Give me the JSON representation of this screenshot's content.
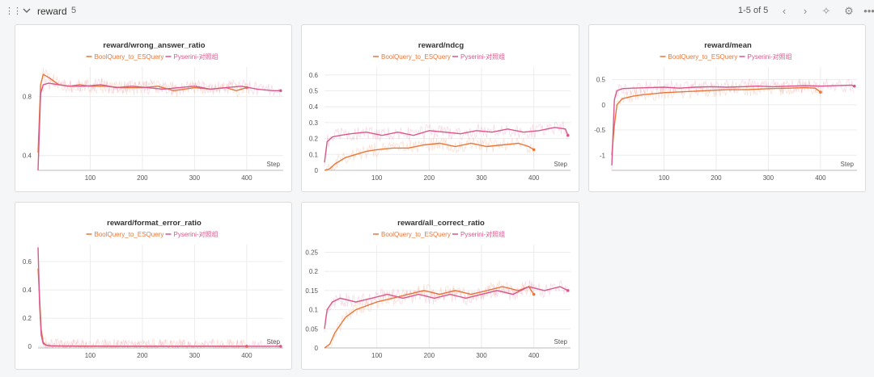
{
  "section": {
    "title": "reward",
    "count": "5",
    "pager": "1-5 of 5"
  },
  "icons": {
    "drag": "drag-handle-icon",
    "collapse": "chevron-down-icon",
    "prev": "chevron-left-icon",
    "next": "chevron-right-icon",
    "magic": "sparkle-icon",
    "settings": "gear-icon",
    "more": "more-icon"
  },
  "series_colors": {
    "BoolQuery_to_ESQuery": "#e8773a",
    "Pyserini-对照组": "#d9578a"
  },
  "chart_data": [
    {
      "type": "line",
      "title": "reward/wrong_answer_ratio",
      "xlabel": "Step",
      "xlim": [
        0,
        470
      ],
      "ylim": [
        0.3,
        1.0
      ],
      "xticks": [
        100,
        200,
        300,
        400
      ],
      "yticks": [
        0.4,
        0.8
      ],
      "series": [
        {
          "name": "BoolQuery_to_ESQuery",
          "x": [
            0,
            5,
            10,
            20,
            40,
            60,
            80,
            100,
            130,
            160,
            200,
            230,
            260,
            300,
            330,
            360,
            380,
            400
          ],
          "y": [
            0.42,
            0.88,
            0.95,
            0.93,
            0.88,
            0.87,
            0.88,
            0.87,
            0.87,
            0.86,
            0.86,
            0.87,
            0.84,
            0.86,
            0.85,
            0.86,
            0.84,
            0.86
          ]
        },
        {
          "name": "Pyserini-对照组",
          "x": [
            0,
            5,
            10,
            20,
            40,
            60,
            90,
            120,
            150,
            180,
            210,
            240,
            270,
            300,
            330,
            360,
            390,
            420,
            450,
            465
          ],
          "y": [
            0.3,
            0.82,
            0.88,
            0.89,
            0.88,
            0.87,
            0.87,
            0.88,
            0.86,
            0.87,
            0.86,
            0.85,
            0.86,
            0.87,
            0.85,
            0.86,
            0.87,
            0.85,
            0.84,
            0.84
          ]
        }
      ]
    },
    {
      "type": "line",
      "title": "reward/ndcg",
      "xlabel": "Step",
      "xlim": [
        0,
        470
      ],
      "ylim": [
        0,
        0.65
      ],
      "xticks": [
        100,
        200,
        300,
        400
      ],
      "yticks": [
        0,
        0.1,
        0.2,
        0.3,
        0.4,
        0.5,
        0.6
      ],
      "series": [
        {
          "name": "BoolQuery_to_ESQuery",
          "x": [
            0,
            10,
            20,
            40,
            60,
            80,
            100,
            130,
            160,
            190,
            220,
            250,
            280,
            310,
            340,
            370,
            390,
            400
          ],
          "y": [
            0.0,
            0.01,
            0.04,
            0.08,
            0.1,
            0.12,
            0.13,
            0.14,
            0.14,
            0.16,
            0.17,
            0.15,
            0.17,
            0.15,
            0.16,
            0.17,
            0.15,
            0.13
          ]
        },
        {
          "name": "Pyserini-对照组",
          "x": [
            0,
            5,
            15,
            30,
            50,
            80,
            110,
            140,
            170,
            200,
            230,
            260,
            290,
            320,
            350,
            380,
            410,
            440,
            460,
            465
          ],
          "y": [
            0.05,
            0.18,
            0.21,
            0.22,
            0.23,
            0.24,
            0.22,
            0.24,
            0.22,
            0.25,
            0.24,
            0.23,
            0.25,
            0.24,
            0.26,
            0.24,
            0.25,
            0.27,
            0.26,
            0.22
          ]
        }
      ]
    },
    {
      "type": "line",
      "title": "reward/mean",
      "xlabel": "Step",
      "xlim": [
        0,
        470
      ],
      "ylim": [
        -1.3,
        0.75
      ],
      "xticks": [
        100,
        200,
        300,
        400
      ],
      "yticks": [
        -1,
        -0.5,
        0,
        0.5
      ],
      "series": [
        {
          "name": "BoolQuery_to_ESQuery",
          "x": [
            0,
            5,
            10,
            20,
            40,
            60,
            80,
            100,
            140,
            180,
            220,
            260,
            300,
            340,
            370,
            390,
            400
          ],
          "y": [
            -1.0,
            -0.4,
            0.0,
            0.12,
            0.17,
            0.2,
            0.22,
            0.24,
            0.26,
            0.28,
            0.3,
            0.3,
            0.32,
            0.33,
            0.34,
            0.33,
            0.25
          ]
        },
        {
          "name": "Pyserini-对照组",
          "x": [
            0,
            5,
            10,
            20,
            40,
            70,
            100,
            130,
            160,
            190,
            220,
            250,
            280,
            310,
            340,
            370,
            400,
            430,
            460,
            465
          ],
          "y": [
            -1.2,
            0.1,
            0.28,
            0.32,
            0.33,
            0.34,
            0.35,
            0.33,
            0.35,
            0.36,
            0.35,
            0.36,
            0.37,
            0.36,
            0.37,
            0.38,
            0.37,
            0.38,
            0.39,
            0.37
          ]
        }
      ]
    },
    {
      "type": "line",
      "title": "reward/format_error_ratio",
      "xlabel": "Step",
      "xlim": [
        0,
        470
      ],
      "ylim": [
        -0.01,
        0.72
      ],
      "xticks": [
        100,
        200,
        300,
        400
      ],
      "yticks": [
        0,
        0.2,
        0.4,
        0.6
      ],
      "series": [
        {
          "name": "BoolQuery_to_ESQuery",
          "x": [
            0,
            3,
            6,
            10,
            15,
            25,
            40,
            80,
            150,
            250,
            350,
            400
          ],
          "y": [
            0.55,
            0.35,
            0.12,
            0.03,
            0.01,
            0.005,
            0.004,
            0.003,
            0.002,
            0.002,
            0.002,
            0.002
          ]
        },
        {
          "name": "Pyserini-对照组",
          "x": [
            0,
            3,
            6,
            10,
            15,
            25,
            40,
            80,
            150,
            250,
            350,
            450,
            465
          ],
          "y": [
            0.7,
            0.3,
            0.08,
            0.02,
            0.01,
            0.005,
            0.003,
            0.002,
            0.002,
            0.002,
            0.002,
            0.002,
            0.002
          ]
        }
      ]
    },
    {
      "type": "line",
      "title": "reward/all_correct_ratio",
      "xlabel": "Step",
      "xlim": [
        0,
        470
      ],
      "ylim": [
        0,
        0.27
      ],
      "xticks": [
        100,
        200,
        300,
        400
      ],
      "yticks": [
        0,
        0.05,
        0.1,
        0.15,
        0.2,
        0.25
      ],
      "series": [
        {
          "name": "BoolQuery_to_ESQuery",
          "x": [
            0,
            10,
            20,
            40,
            60,
            80,
            100,
            130,
            160,
            190,
            220,
            250,
            280,
            310,
            340,
            370,
            390,
            400
          ],
          "y": [
            0.0,
            0.01,
            0.04,
            0.08,
            0.1,
            0.11,
            0.12,
            0.13,
            0.14,
            0.15,
            0.14,
            0.15,
            0.14,
            0.15,
            0.16,
            0.15,
            0.16,
            0.14
          ]
        },
        {
          "name": "Pyserini-对照组",
          "x": [
            0,
            5,
            15,
            30,
            60,
            90,
            120,
            150,
            180,
            210,
            240,
            270,
            300,
            330,
            360,
            390,
            420,
            450,
            465
          ],
          "y": [
            0.05,
            0.1,
            0.12,
            0.13,
            0.12,
            0.13,
            0.14,
            0.13,
            0.14,
            0.13,
            0.14,
            0.13,
            0.14,
            0.15,
            0.14,
            0.16,
            0.15,
            0.16,
            0.15
          ]
        }
      ]
    }
  ]
}
